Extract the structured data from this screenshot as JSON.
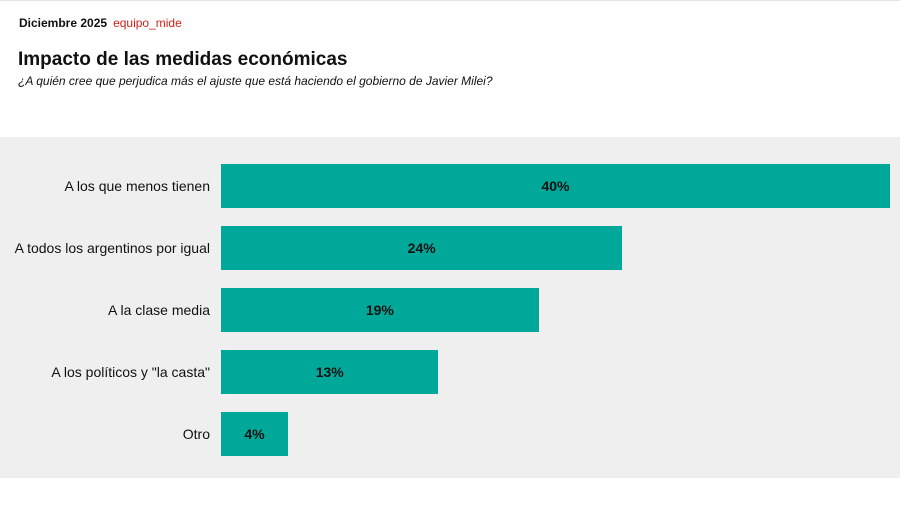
{
  "header": {
    "date": "Diciembre 2025",
    "source": "equipo_mide",
    "title": "Impacto de las medidas económicas",
    "subtitle": "¿A quién cree que perjudica más el ajuste que está haciendo el gobierno de Javier Milei?"
  },
  "colors": {
    "bar": "#00a89a",
    "panel_background": "#efefef",
    "source_text": "#d0201a"
  },
  "bars": [
    {
      "label": "A los que menos tienen",
      "value": 40,
      "value_label": "40%"
    },
    {
      "label": "A todos los argentinos por igual",
      "value": 24,
      "value_label": "24%"
    },
    {
      "label": "A la clase media",
      "value": 19,
      "value_label": "19%"
    },
    {
      "label": "A los políticos y \"la casta\"",
      "value": 13,
      "value_label": "13%"
    },
    {
      "label": "Otro",
      "value": 4,
      "value_label": "4%"
    }
  ],
  "chart_data": {
    "type": "bar",
    "orientation": "horizontal",
    "title": "Impacto de las medidas económicas",
    "subtitle": "¿A quién cree que perjudica más el ajuste que está haciendo el gobierno de Javier Milei?",
    "categories": [
      "A los que menos tienen",
      "A todos los argentinos por igual",
      "A la clase media",
      "A los políticos y \"la casta\"",
      "Otro"
    ],
    "values": [
      40,
      24,
      19,
      13,
      4
    ],
    "unit": "%",
    "xlabel": "",
    "ylabel": "",
    "xlim": [
      0,
      40
    ],
    "grid": false,
    "legend": "none",
    "data_labels": [
      "40%",
      "24%",
      "19%",
      "13%",
      "4%"
    ]
  }
}
